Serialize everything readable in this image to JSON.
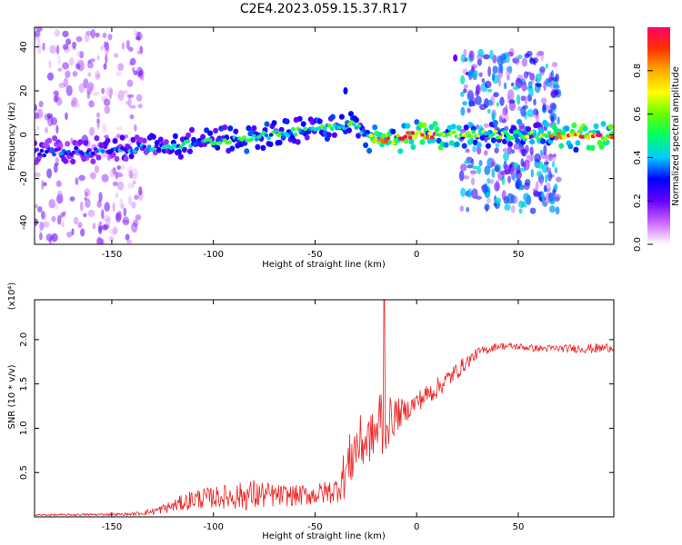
{
  "title": "C2E4.2023.059.15.37.R17",
  "colorbar": {
    "label": "Normalized spectral amplitude",
    "ticks": [
      0.0,
      0.2,
      0.4,
      0.6,
      0.8
    ],
    "range": [
      0,
      1
    ],
    "colormap": [
      "#ffffff",
      "#cc66ff",
      "#6600ff",
      "#0000ff",
      "#00ccff",
      "#00ff66",
      "#66ff00",
      "#ffff00",
      "#ffaa00",
      "#ff3300",
      "#ff0066"
    ]
  },
  "chart_data": [
    {
      "type": "heatmap",
      "xlabel": "Height of straight line (km)",
      "ylabel": "Frequency (Hz)",
      "xlim": [
        -188,
        97
      ],
      "ylim": [
        -50,
        49
      ],
      "xticks": [
        -150,
        -100,
        -50,
        0,
        50
      ],
      "yticks": [
        -40,
        -20,
        0,
        20,
        40
      ],
      "ridge": {
        "x": [
          -185,
          -150,
          -130,
          -110,
          -90,
          -70,
          -50,
          -30,
          -25,
          -20,
          -15,
          -10,
          -5,
          0,
          10,
          20,
          40,
          60,
          70,
          80,
          95
        ],
        "y": [
          -8,
          -7,
          -6,
          -4,
          -2,
          0,
          3,
          5,
          0,
          -3,
          -3,
          -2,
          0,
          0,
          0,
          0,
          0,
          0,
          0,
          -1,
          -1
        ],
        "amplitude": [
          0.3,
          0.35,
          0.4,
          0.45,
          0.5,
          0.5,
          0.5,
          0.55,
          0.5,
          0.8,
          0.85,
          0.8,
          0.9,
          0.95,
          0.85,
          0.7,
          0.6,
          0.6,
          0.8,
          0.9,
          0.9
        ]
      },
      "broadband_regions": [
        {
          "x": [
            -188,
            -135
          ],
          "y": [
            -50,
            49
          ],
          "amplitude": 0.15
        },
        {
          "x": [
            22,
            70
          ],
          "y": [
            -35,
            38
          ],
          "amplitude": 0.3
        }
      ],
      "isolated_features": [
        {
          "x": 19,
          "y": 35,
          "amplitude": 0.2
        },
        {
          "x": -35,
          "y": 20,
          "amplitude": 0.3
        }
      ]
    },
    {
      "type": "line",
      "xlabel": "Height of straight line (km)",
      "ylabel": "SNR (10 * v/v)",
      "scale_label": "(x10⁴)",
      "xlim": [
        -188,
        97
      ],
      "ylim": [
        0,
        2.45
      ],
      "xticks": [
        -150,
        -100,
        -50,
        0,
        50
      ],
      "yticks": [
        0.5,
        1.0,
        1.5,
        2.0
      ],
      "color": "#ee2222",
      "envelope": {
        "x": [
          -188,
          -140,
          -130,
          -120,
          -110,
          -100,
          -90,
          -80,
          -70,
          -60,
          -50,
          -40,
          -35,
          -30,
          -25,
          -20,
          -17,
          -15,
          -10,
          -5,
          0,
          10,
          20,
          30,
          40,
          50,
          60,
          70,
          80,
          90,
          97
        ],
        "mean": [
          0.02,
          0.03,
          0.06,
          0.12,
          0.2,
          0.22,
          0.23,
          0.25,
          0.24,
          0.24,
          0.25,
          0.3,
          0.5,
          0.8,
          0.85,
          0.95,
          1.1,
          1.05,
          1.15,
          1.2,
          1.3,
          1.45,
          1.65,
          1.85,
          1.93,
          1.92,
          1.9,
          1.9,
          1.9,
          1.9,
          1.92
        ],
        "noise": [
          0.01,
          0.015,
          0.04,
          0.07,
          0.12,
          0.12,
          0.15,
          0.18,
          0.13,
          0.12,
          0.12,
          0.15,
          0.3,
          0.35,
          0.3,
          0.25,
          0.6,
          0.3,
          0.2,
          0.12,
          0.12,
          0.12,
          0.1,
          0.06,
          0.04,
          0.04,
          0.04,
          0.04,
          0.05,
          0.06,
          0.05
        ]
      },
      "peak": {
        "x": -16,
        "y": 2.45
      }
    }
  ]
}
